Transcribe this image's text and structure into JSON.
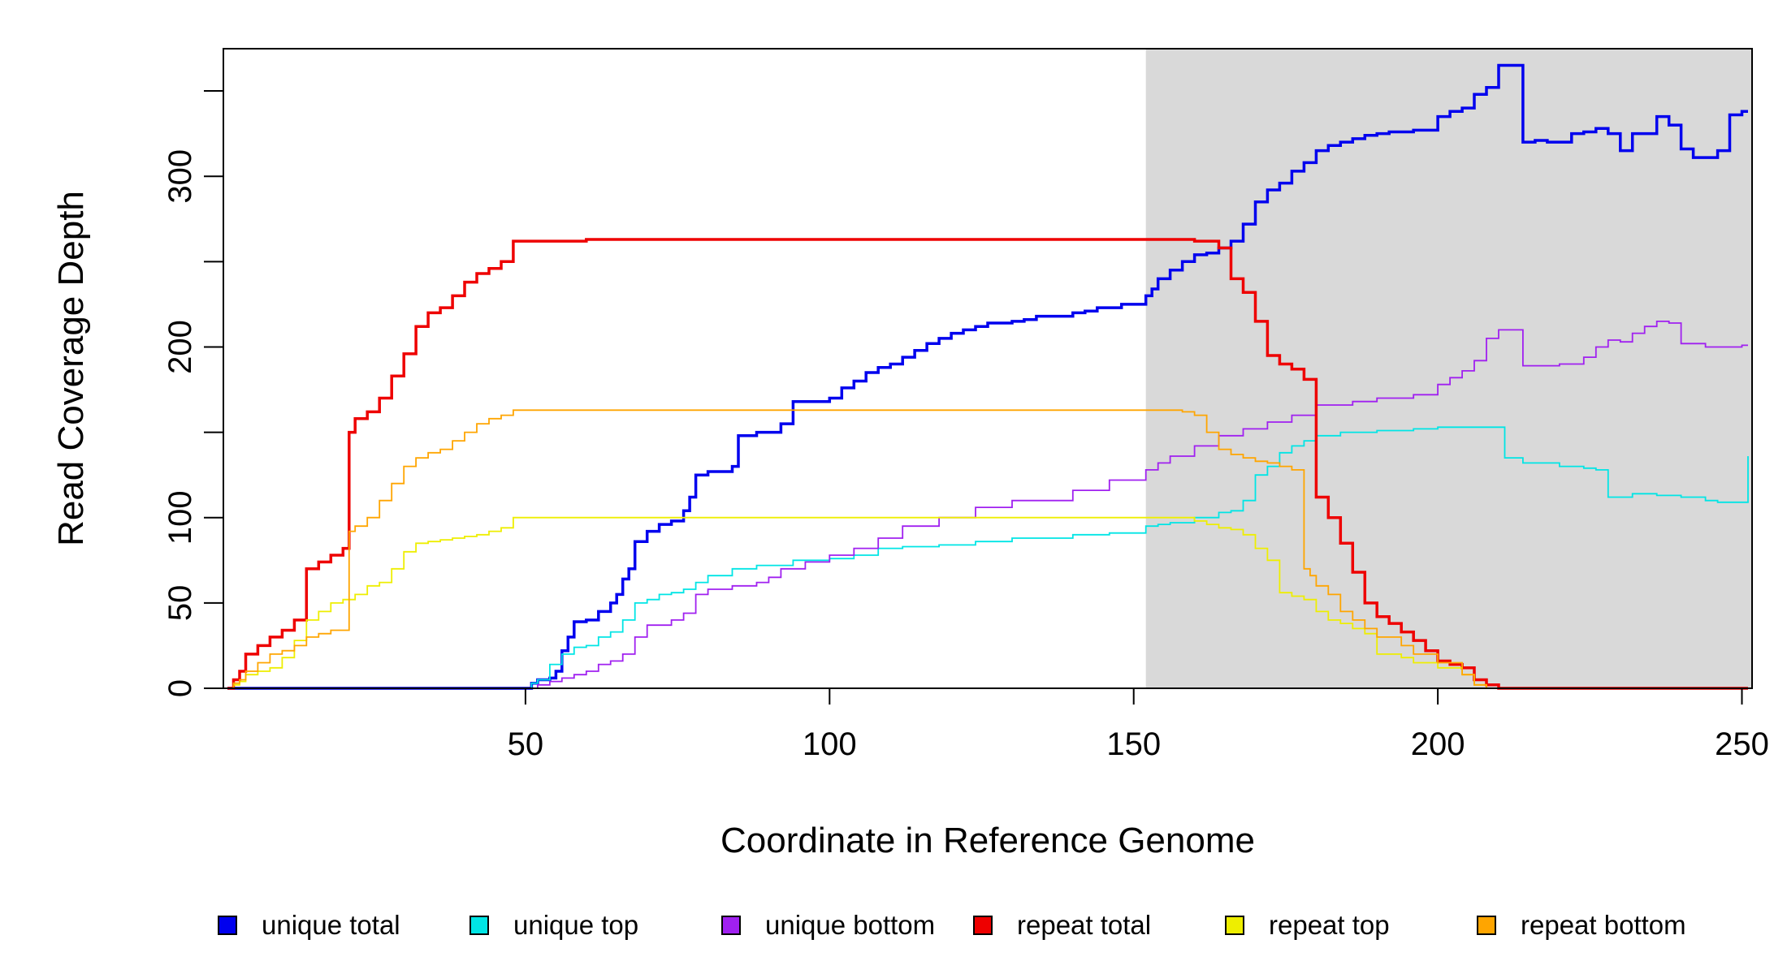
{
  "chart_data": {
    "type": "line",
    "xlabel": "Coordinate in Reference Genome",
    "ylabel": "Read Coverage Depth",
    "xlim": [
      1,
      251
    ],
    "ylim": [
      0,
      370
    ],
    "x_ticks": [
      50,
      100,
      150,
      200,
      250
    ],
    "y_ticks": [
      0,
      50,
      100,
      150,
      200,
      250,
      300,
      350
    ],
    "y_tick_labels": [
      "0",
      "50",
      "100",
      "",
      "200",
      "",
      "300",
      ""
    ],
    "shaded_region": {
      "from": 152,
      "to": 251,
      "color": "#d9d9d9"
    },
    "legend_position": "bottom",
    "series": [
      {
        "name": "unique total",
        "color": "#0000ee",
        "x": [
          1,
          50,
          51,
          52,
          54,
          55,
          56,
          57,
          58,
          59,
          60,
          62,
          64,
          65,
          66,
          67,
          68,
          70,
          72,
          74,
          76,
          77,
          78,
          80,
          84,
          85,
          88,
          92,
          94,
          100,
          102,
          104,
          106,
          108,
          110,
          112,
          114,
          116,
          118,
          120,
          122,
          124,
          126,
          130,
          132,
          134,
          140,
          142,
          144,
          148,
          152,
          153,
          154,
          156,
          158,
          160,
          162,
          164,
          166,
          168,
          170,
          172,
          174,
          176,
          178,
          180,
          182,
          184,
          186,
          188,
          190,
          192,
          196,
          200,
          202,
          204,
          206,
          208,
          210,
          211,
          214,
          216,
          218,
          222,
          224,
          226,
          228,
          230,
          232,
          236,
          238,
          240,
          242,
          244,
          246,
          248,
          250,
          251
        ],
        "y": [
          0,
          0,
          3,
          5,
          6,
          10,
          22,
          30,
          39,
          39,
          40,
          45,
          50,
          55,
          64,
          70,
          86,
          92,
          96,
          98,
          104,
          112,
          125,
          127,
          130,
          148,
          150,
          155,
          168,
          170,
          176,
          180,
          185,
          188,
          190,
          194,
          198,
          202,
          205,
          208,
          210,
          212,
          214,
          215,
          216,
          218,
          220,
          221,
          223,
          225,
          230,
          234,
          240,
          245,
          250,
          254,
          255,
          258,
          262,
          272,
          285,
          292,
          296,
          303,
          308,
          315,
          318,
          320,
          322,
          324,
          325,
          326,
          327,
          335,
          338,
          340,
          348,
          352,
          365,
          365,
          320,
          321,
          320,
          325,
          326,
          328,
          325,
          315,
          325,
          335,
          330,
          316,
          311,
          311,
          315,
          336,
          338,
          338
        ]
      },
      {
        "name": "unique top",
        "color": "#00e5e5",
        "x": [
          1,
          50,
          51,
          52,
          54,
          56,
          58,
          60,
          62,
          64,
          66,
          68,
          70,
          72,
          74,
          76,
          78,
          80,
          84,
          88,
          94,
          100,
          104,
          108,
          112,
          118,
          124,
          130,
          140,
          146,
          152,
          154,
          156,
          160,
          164,
          166,
          168,
          170,
          172,
          174,
          176,
          178,
          180,
          184,
          190,
          196,
          200,
          210,
          211,
          214,
          220,
          224,
          226,
          228,
          232,
          236,
          240,
          244,
          246,
          251
        ],
        "y": [
          0,
          0,
          3,
          5,
          14,
          20,
          24,
          25,
          30,
          33,
          40,
          50,
          52,
          55,
          56,
          58,
          62,
          66,
          70,
          72,
          75,
          76,
          78,
          82,
          83,
          84,
          86,
          88,
          90,
          91,
          95,
          96,
          97,
          100,
          103,
          104,
          110,
          125,
          130,
          138,
          142,
          145,
          148,
          150,
          151,
          152,
          153,
          153,
          135,
          132,
          130,
          129,
          128,
          112,
          114,
          113,
          112,
          110,
          109,
          136
        ]
      },
      {
        "name": "unique bottom",
        "color": "#a020f0",
        "x": [
          1,
          50,
          52,
          54,
          56,
          58,
          60,
          62,
          64,
          66,
          68,
          70,
          72,
          74,
          76,
          78,
          80,
          84,
          88,
          90,
          92,
          96,
          100,
          104,
          108,
          112,
          118,
          124,
          130,
          140,
          146,
          152,
          154,
          156,
          160,
          164,
          168,
          172,
          176,
          180,
          186,
          190,
          196,
          200,
          202,
          204,
          206,
          208,
          210,
          211,
          214,
          220,
          224,
          226,
          228,
          230,
          232,
          234,
          236,
          238,
          240,
          244,
          248,
          250,
          251
        ],
        "y": [
          0,
          0,
          2,
          4,
          6,
          8,
          10,
          14,
          16,
          20,
          30,
          37,
          37,
          40,
          44,
          55,
          58,
          60,
          62,
          65,
          70,
          74,
          78,
          82,
          88,
          95,
          100,
          106,
          110,
          116,
          122,
          128,
          132,
          136,
          142,
          148,
          152,
          156,
          160,
          166,
          168,
          170,
          172,
          178,
          182,
          186,
          192,
          205,
          210,
          210,
          189,
          190,
          194,
          200,
          204,
          203,
          208,
          212,
          215,
          214,
          202,
          200,
          200,
          201,
          201
        ]
      },
      {
        "name": "repeat total",
        "color": "#ee0000",
        "x": [
          1,
          2,
          3,
          4,
          6,
          8,
          10,
          12,
          14,
          16,
          18,
          20,
          21,
          22,
          24,
          26,
          28,
          30,
          32,
          34,
          36,
          38,
          40,
          42,
          44,
          46,
          48,
          60,
          100,
          152,
          160,
          164,
          166,
          168,
          170,
          172,
          174,
          176,
          178,
          180,
          182,
          184,
          186,
          188,
          190,
          192,
          194,
          196,
          198,
          200,
          202,
          204,
          206,
          208,
          210,
          230,
          251
        ],
        "y": [
          0,
          5,
          10,
          20,
          25,
          30,
          34,
          40,
          70,
          74,
          78,
          82,
          150,
          158,
          162,
          170,
          183,
          196,
          212,
          220,
          223,
          230,
          238,
          243,
          246,
          250,
          262,
          263,
          263,
          263,
          262,
          258,
          240,
          232,
          215,
          195,
          190,
          187,
          181,
          112,
          100,
          85,
          68,
          50,
          42,
          38,
          33,
          28,
          22,
          16,
          14,
          12,
          5,
          2,
          0,
          0,
          0
        ]
      },
      {
        "name": "repeat top",
        "color": "#eeee00",
        "x": [
          1,
          2,
          3,
          4,
          6,
          8,
          10,
          12,
          14,
          16,
          18,
          20,
          22,
          24,
          26,
          28,
          30,
          32,
          34,
          36,
          38,
          40,
          42,
          44,
          46,
          48,
          60,
          100,
          152,
          158,
          160,
          162,
          164,
          166,
          168,
          170,
          172,
          174,
          176,
          178,
          180,
          182,
          184,
          186,
          188,
          190,
          194,
          196,
          200,
          204,
          206,
          208,
          251
        ],
        "y": [
          0,
          2,
          4,
          8,
          10,
          12,
          18,
          28,
          40,
          45,
          50,
          52,
          55,
          60,
          62,
          70,
          80,
          85,
          86,
          87,
          88,
          89,
          90,
          92,
          94,
          100,
          100,
          100,
          100,
          100,
          98,
          96,
          94,
          93,
          90,
          82,
          75,
          56,
          54,
          52,
          45,
          40,
          38,
          35,
          32,
          20,
          18,
          15,
          12,
          8,
          2,
          0,
          0
        ]
      },
      {
        "name": "repeat bottom",
        "color": "#ffa500",
        "x": [
          1,
          2,
          3,
          4,
          6,
          8,
          10,
          12,
          14,
          16,
          18,
          20,
          21,
          22,
          24,
          26,
          28,
          30,
          32,
          34,
          36,
          38,
          40,
          42,
          44,
          46,
          48,
          60,
          100,
          152,
          158,
          160,
          162,
          164,
          166,
          168,
          170,
          172,
          174,
          176,
          178,
          179,
          180,
          182,
          184,
          186,
          188,
          190,
          194,
          196,
          200,
          204,
          206,
          208,
          251
        ],
        "y": [
          0,
          3,
          5,
          10,
          15,
          20,
          22,
          25,
          30,
          32,
          34,
          34,
          92,
          95,
          100,
          110,
          120,
          130,
          135,
          138,
          140,
          145,
          150,
          155,
          158,
          160,
          163,
          163,
          163,
          163,
          162,
          160,
          150,
          140,
          137,
          135,
          133,
          132,
          130,
          128,
          70,
          66,
          60,
          55,
          45,
          40,
          35,
          30,
          25,
          20,
          15,
          8,
          2,
          0,
          0
        ]
      }
    ]
  }
}
